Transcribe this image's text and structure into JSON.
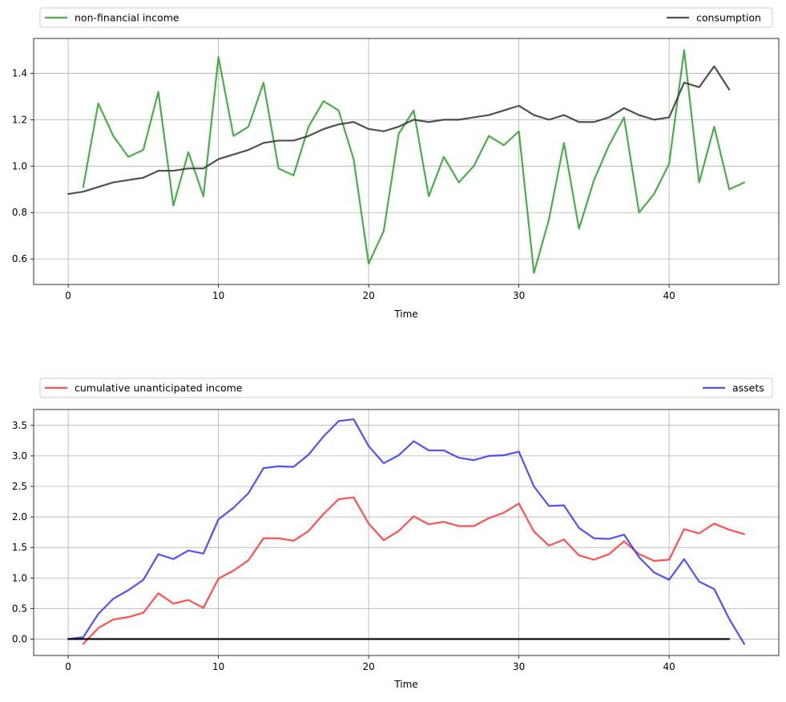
{
  "colors": {
    "green": "#2ca02c",
    "gray": "#333333",
    "red": "#ff3333",
    "blue": "#3333ff",
    "black": "#000000"
  },
  "chart_data": [
    {
      "type": "line",
      "xlabel": "Time",
      "ylabel": "",
      "xlim": [
        -2.3,
        47.3
      ],
      "ylim": [
        0.49,
        1.55
      ],
      "xticks": [
        0,
        10,
        20,
        30,
        40
      ],
      "yticks": [
        0.6,
        0.8,
        1.0,
        1.2,
        1.4
      ],
      "ytick_labels": [
        "0.6",
        "0.8",
        "1.0",
        "1.2",
        "1.4"
      ],
      "grid": true,
      "legend": {
        "placement": "above",
        "entries": [
          "non-financial income",
          "consumption"
        ]
      },
      "series": [
        {
          "name": "non-financial income",
          "color": "green",
          "x_start": 1,
          "values": [
            0.91,
            1.27,
            1.13,
            1.04,
            1.07,
            1.32,
            0.83,
            1.06,
            0.87,
            1.47,
            1.13,
            1.17,
            1.36,
            0.99,
            0.96,
            1.17,
            1.28,
            1.24,
            1.03,
            0.58,
            0.72,
            1.14,
            1.24,
            0.87,
            1.04,
            0.93,
            1.0,
            1.13,
            1.09,
            1.15,
            0.54,
            0.77,
            1.1,
            0.73,
            0.94,
            1.09,
            1.21,
            0.8,
            0.88,
            1.01,
            1.5,
            0.93,
            1.17,
            0.9,
            0.93
          ]
        },
        {
          "name": "consumption",
          "color": "gray",
          "x_start": 0,
          "values": [
            0.88,
            0.89,
            0.91,
            0.93,
            0.94,
            0.95,
            0.98,
            0.98,
            0.99,
            0.99,
            1.03,
            1.05,
            1.07,
            1.1,
            1.11,
            1.11,
            1.13,
            1.16,
            1.18,
            1.19,
            1.16,
            1.15,
            1.17,
            1.2,
            1.19,
            1.2,
            1.2,
            1.21,
            1.22,
            1.24,
            1.26,
            1.22,
            1.2,
            1.22,
            1.19,
            1.19,
            1.21,
            1.25,
            1.22,
            1.2,
            1.21,
            1.36,
            1.34,
            1.43,
            1.33
          ]
        }
      ]
    },
    {
      "type": "line",
      "xlabel": "Time",
      "ylabel": "",
      "xlim": [
        -2.3,
        47.3
      ],
      "ylim": [
        -0.27,
        3.76
      ],
      "xticks": [
        0,
        10,
        20,
        30,
        40
      ],
      "yticks": [
        0.0,
        0.5,
        1.0,
        1.5,
        2.0,
        2.5,
        3.0,
        3.5
      ],
      "ytick_labels": [
        "0.0",
        "0.5",
        "1.0",
        "1.5",
        "2.0",
        "2.5",
        "3.0",
        "3.5"
      ],
      "grid": true,
      "legend": {
        "placement": "above",
        "entries": [
          "cumulative unanticipated income",
          "assets"
        ]
      },
      "series": [
        {
          "name": "cumulative unanticipated income",
          "color": "red",
          "x_start": 1,
          "values": [
            -0.08,
            0.18,
            0.32,
            0.36,
            0.43,
            0.75,
            0.58,
            0.64,
            0.51,
            0.99,
            1.12,
            1.29,
            1.65,
            1.65,
            1.61,
            1.77,
            2.05,
            2.29,
            2.32,
            1.89,
            1.62,
            1.77,
            2.01,
            1.88,
            1.92,
            1.85,
            1.85,
            1.98,
            2.07,
            2.22,
            1.76,
            1.53,
            1.63,
            1.37,
            1.3,
            1.39,
            1.6,
            1.39,
            1.28,
            1.3,
            1.8,
            1.73,
            1.89,
            1.79,
            1.72
          ]
        },
        {
          "name": "assets",
          "color": "blue",
          "x_start": 0,
          "values": [
            0.0,
            0.03,
            0.41,
            0.66,
            0.8,
            0.97,
            1.39,
            1.31,
            1.45,
            1.4,
            1.96,
            2.15,
            2.39,
            2.8,
            2.83,
            2.82,
            3.02,
            3.32,
            3.57,
            3.6,
            3.16,
            2.88,
            3.01,
            3.24,
            3.09,
            3.09,
            2.97,
            2.93,
            3.0,
            3.01,
            3.07,
            2.5,
            2.18,
            2.19,
            1.82,
            1.65,
            1.64,
            1.71,
            1.34,
            1.09,
            0.97,
            1.31,
            0.94,
            0.82,
            0.33,
            -0.08
          ]
        },
        {
          "name": "",
          "color": "black",
          "x_start": 0,
          "values": [
            0,
            0,
            0,
            0,
            0,
            0,
            0,
            0,
            0,
            0,
            0,
            0,
            0,
            0,
            0,
            0,
            0,
            0,
            0,
            0,
            0,
            0,
            0,
            0,
            0,
            0,
            0,
            0,
            0,
            0,
            0,
            0,
            0,
            0,
            0,
            0,
            0,
            0,
            0,
            0,
            0,
            0,
            0,
            0,
            0
          ]
        }
      ]
    }
  ]
}
